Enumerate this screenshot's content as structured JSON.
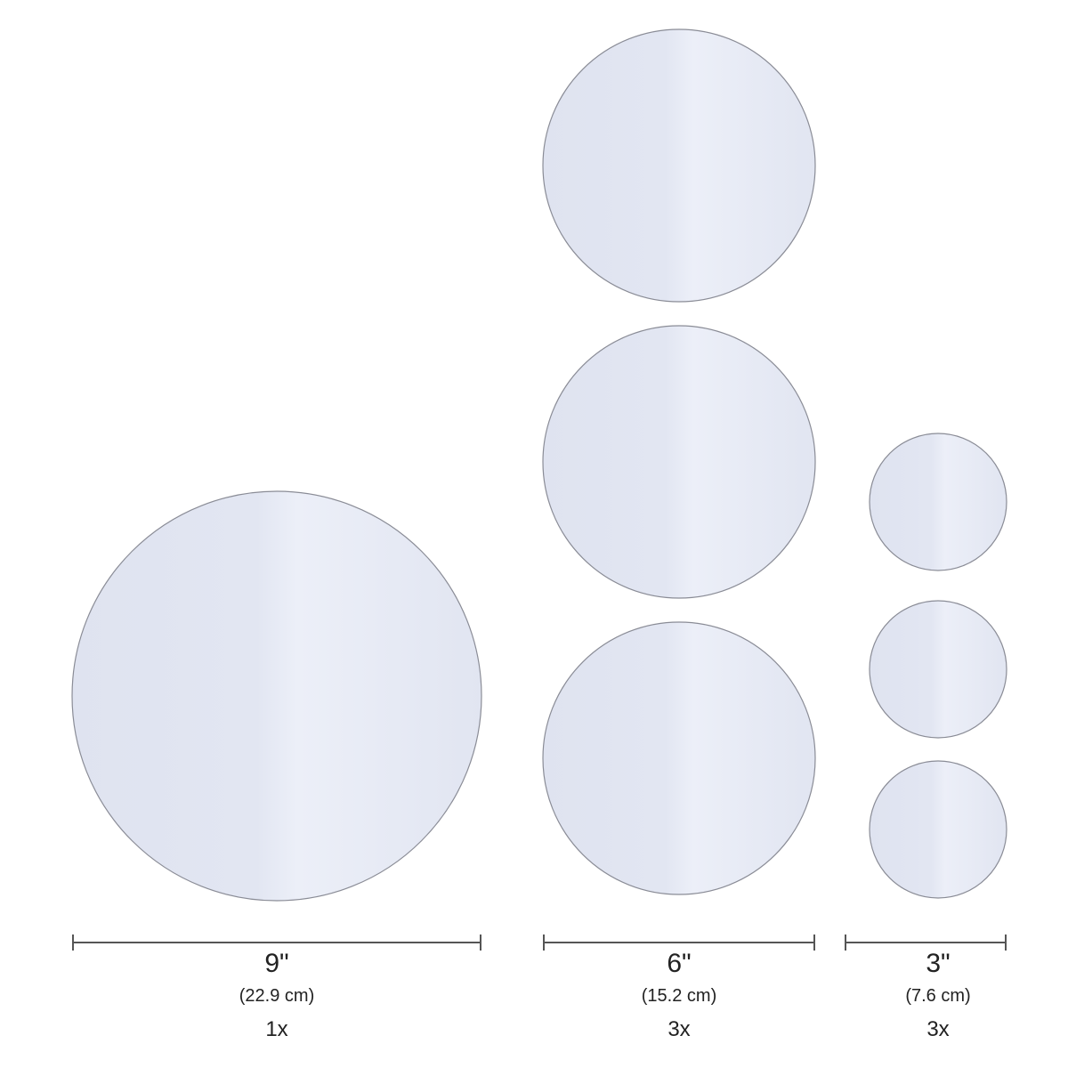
{
  "colors": {
    "mirror_fill": "#e4e8f4",
    "mirror_edge": "#8a8c96",
    "line": "#555555"
  },
  "groups": [
    {
      "size": "9\"",
      "metric": "(22.9 cm)",
      "quantity": "1x"
    },
    {
      "size": "6\"",
      "metric": "(15.2 cm)",
      "quantity": "3x"
    },
    {
      "size": "3\"",
      "metric": "(7.6 cm)",
      "quantity": "3x"
    }
  ]
}
